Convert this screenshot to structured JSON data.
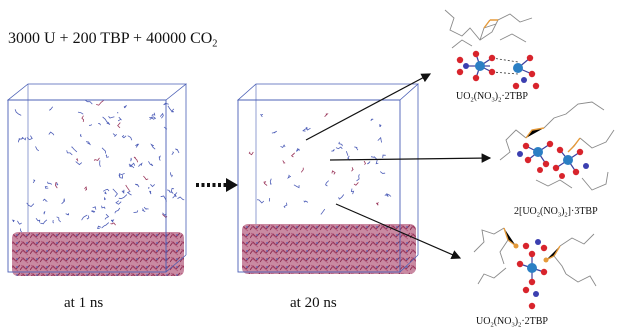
{
  "title": {
    "prefix": "3000 U + 200 TBP + 40000 CO",
    "sub": "2"
  },
  "snapshots": [
    {
      "caption": "at 1 ns"
    },
    {
      "caption": "at 20 ns"
    }
  ],
  "complexes": [
    {
      "parts": [
        "UO",
        "2",
        "(NO",
        "3",
        ")",
        "2",
        "·2TBP"
      ]
    },
    {
      "parts": [
        "2[UO",
        "2",
        "(NO",
        "3",
        ")",
        "2",
        "]·3TBP"
      ]
    },
    {
      "parts": [
        "UO",
        "2",
        "(NO",
        "3",
        ")",
        "2",
        "·2TBP"
      ]
    }
  ],
  "colors": {
    "box_edge": "#4a5fb5",
    "organic_layer": "#9c3a5e",
    "tbp_molecule": "#4f5fb8",
    "uranium": "#2b7fc4",
    "oxygen": "#d8242c",
    "nitrogen": "#3b3fb0",
    "phosphorus": "#e59a3a",
    "carbon_chain": "#8a8a8a",
    "arrow": "#111111"
  }
}
